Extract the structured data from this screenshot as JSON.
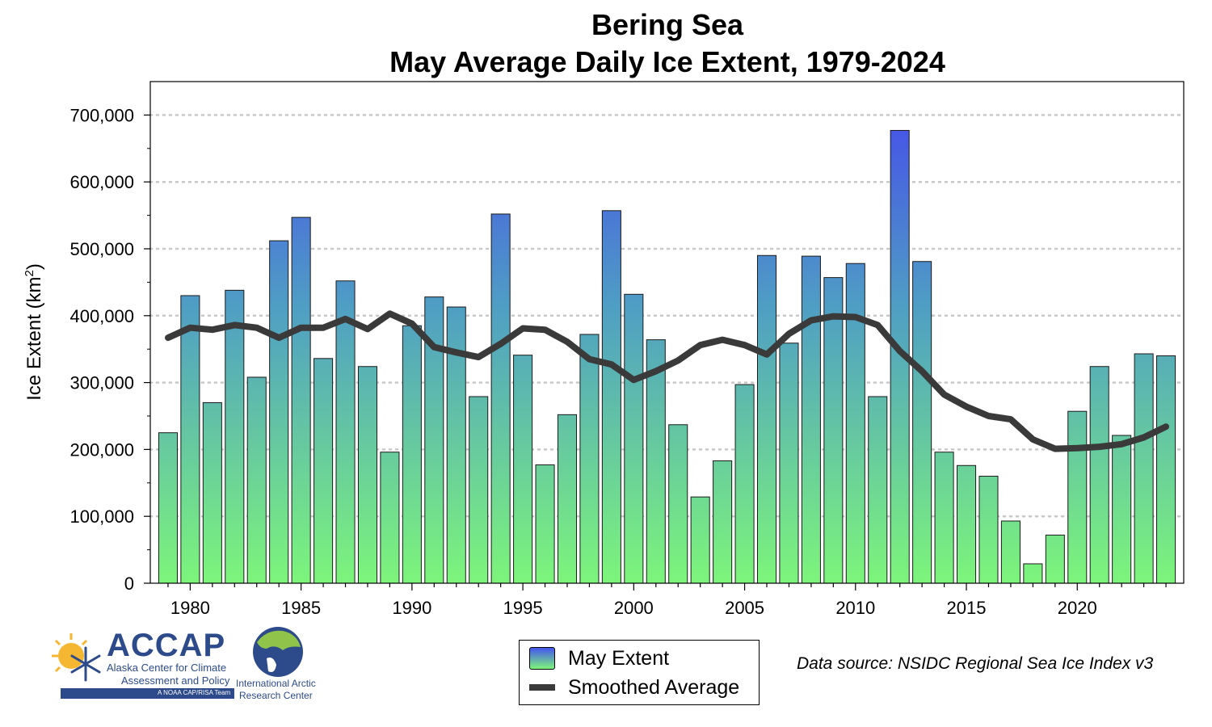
{
  "chart_data": {
    "type": "bar",
    "title": "Bering Sea",
    "subtitle": "May Average Daily Ice Extent, 1979-2024",
    "ylabel": "Ice Extent (km",
    "ylabel_sup": "2",
    "ylabel_close": ")",
    "xlabel": "",
    "ylim": [
      0,
      750000
    ],
    "xlim": [
      1978.2,
      1024.8
    ],
    "yticks": [
      0,
      100000,
      200000,
      300000,
      400000,
      500000,
      600000,
      700000
    ],
    "ytick_labels": [
      "0",
      "100,000",
      "200,000",
      "300,000",
      "400,000",
      "500,000",
      "600,000",
      "700,000"
    ],
    "xticks": [
      1980,
      1985,
      1990,
      1995,
      2000,
      2005,
      2010,
      2015,
      2020
    ],
    "xtick_labels": [
      "1980",
      "1985",
      "1990",
      "1995",
      "2000",
      "2005",
      "2010",
      "2015",
      "2020"
    ],
    "grid": "horizontal dotted",
    "years": [
      1979,
      1980,
      1981,
      1982,
      1983,
      1984,
      1985,
      1986,
      1987,
      1988,
      1989,
      1990,
      1991,
      1992,
      1993,
      1994,
      1995,
      1996,
      1997,
      1998,
      1999,
      2000,
      2001,
      2002,
      2003,
      2004,
      2005,
      2006,
      2007,
      2008,
      2009,
      2010,
      2011,
      2012,
      2013,
      2014,
      2015,
      2016,
      2017,
      2018,
      2019,
      2020,
      2021,
      2022,
      2023,
      2024
    ],
    "series": [
      {
        "name": "May Extent",
        "type": "bar",
        "color_top": "#4455ee",
        "color_bottom": "#7df57a",
        "values": [
          225000,
          430000,
          270000,
          438000,
          308000,
          512000,
          547000,
          336000,
          452000,
          324000,
          196000,
          385000,
          428000,
          413000,
          279000,
          552000,
          341000,
          177000,
          252000,
          372000,
          557000,
          432000,
          364000,
          237000,
          129000,
          183000,
          297000,
          490000,
          359000,
          489000,
          457000,
          478000,
          279000,
          677000,
          481000,
          196000,
          176000,
          160000,
          93000,
          29000,
          72000,
          257000,
          324000,
          221000,
          343000,
          340000
        ]
      },
      {
        "name": "Smoothed Average",
        "type": "line",
        "color": "#3a3a3a",
        "values": [
          367000,
          382000,
          379000,
          386000,
          382000,
          367000,
          382000,
          382000,
          395000,
          380000,
          403000,
          388000,
          353000,
          345000,
          338000,
          358000,
          381000,
          379000,
          361000,
          335000,
          327000,
          304000,
          317000,
          333000,
          356000,
          364000,
          356000,
          342000,
          373000,
          393000,
          399000,
          398000,
          386000,
          347000,
          317000,
          282000,
          264000,
          250000,
          245000,
          215000,
          201000,
          202000,
          204000,
          208000,
          218000,
          234000
        ]
      }
    ],
    "legend": "bottom-center"
  },
  "legend": {
    "bar_label": "May Extent",
    "line_label": "Smoothed Average"
  },
  "source_note": "Data source: NSIDC Regional Sea Ice Index v3",
  "logos": {
    "accap_name": "ACCAP",
    "accap_line1": "Alaska Center for Climate",
    "accap_line2": "Assessment and Policy",
    "accap_tag": "A NOAA CAP/RISA Team",
    "iarc_line1": "International Arctic",
    "iarc_line2": "Research Center"
  }
}
